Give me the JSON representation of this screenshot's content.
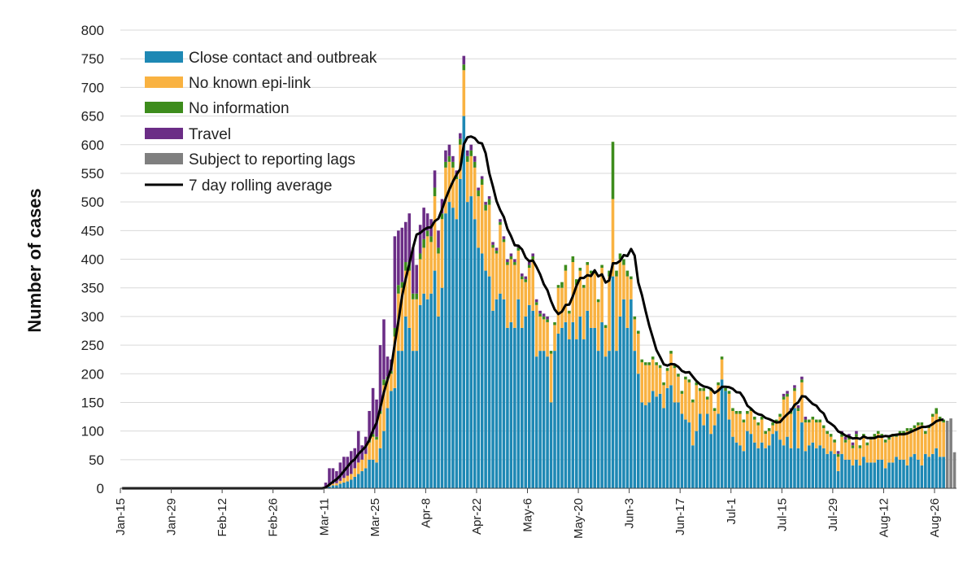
{
  "chart_data": {
    "type": "bar",
    "stacked": true,
    "title": "",
    "xlabel": "",
    "ylabel": "Number of cases",
    "ylim": [
      0,
      800
    ],
    "yticks": [
      0,
      50,
      100,
      150,
      200,
      250,
      300,
      350,
      400,
      450,
      500,
      550,
      600,
      650,
      700,
      750,
      800
    ],
    "grid": true,
    "legend_position": "top-left",
    "x_start": "Jan-15",
    "x_tick_labels": [
      "Jan-15",
      "Jan-29",
      "Feb-12",
      "Feb-26",
      "Mar-11",
      "Mar-25",
      "Apr-8",
      "Apr-22",
      "May-6",
      "May-20",
      "Jun-3",
      "Jun-17",
      "Jul-1",
      "Jul-15",
      "Jul-29",
      "Aug-12",
      "Aug-26"
    ],
    "x_tick_interval_days": 14,
    "first_bar_date": "Mar-11",
    "first_bar_day_index": 56,
    "series": [
      {
        "name": "Close contact and outbreak",
        "color": "#1e88b4",
        "values": [
          2,
          3,
          5,
          5,
          8,
          10,
          12,
          15,
          20,
          25,
          30,
          35,
          50,
          50,
          45,
          70,
          100,
          140,
          170,
          175,
          240,
          240,
          300,
          280,
          240,
          240,
          320,
          340,
          330,
          340,
          380,
          300,
          350,
          480,
          500,
          490,
          470,
          540,
          650,
          500,
          510,
          470,
          420,
          410,
          380,
          370,
          310,
          330,
          340,
          330,
          280,
          290,
          280,
          330,
          280,
          300,
          320,
          310,
          230,
          240,
          240,
          230,
          150,
          240,
          270,
          280,
          290,
          260,
          290,
          260,
          300,
          260,
          310,
          280,
          280,
          240,
          290,
          230,
          240,
          370,
          240,
          300,
          330,
          280,
          330,
          240,
          200,
          150,
          145,
          150,
          170,
          160,
          165,
          140,
          175,
          180,
          150,
          150,
          130,
          120,
          115,
          75,
          100,
          130,
          110,
          130,
          95,
          110,
          130,
          190,
          170,
          120,
          90,
          80,
          75,
          65,
          100,
          95,
          80,
          70,
          80,
          70,
          75,
          95,
          100,
          85,
          75,
          90,
          70,
          140,
          70,
          115,
          65,
          75,
          80,
          70,
          75,
          70,
          60,
          65,
          60,
          30,
          60,
          50,
          50,
          40,
          50,
          40,
          55,
          45,
          45,
          45,
          50,
          50,
          35,
          45,
          45,
          55,
          50,
          50,
          40,
          55,
          60,
          50,
          40,
          60,
          55,
          60,
          70,
          55,
          55
        ]
      },
      {
        "name": "No known epi-link",
        "color": "#f9b241",
        "values": [
          1,
          2,
          3,
          4,
          5,
          8,
          10,
          10,
          15,
          20,
          20,
          25,
          30,
          40,
          40,
          60,
          80,
          50,
          30,
          90,
          100,
          110,
          80,
          100,
          90,
          90,
          80,
          80,
          110,
          90,
          130,
          110,
          120,
          80,
          70,
          70,
          70,
          60,
          80,
          70,
          70,
          90,
          90,
          120,
          105,
          125,
          110,
          80,
          120,
          100,
          110,
          110,
          110,
          85,
          85,
          60,
          65,
          90,
          90,
          60,
          55,
          60,
          85,
          45,
          80,
          70,
          90,
          45,
          105,
          95,
          80,
          90,
          80,
          95,
          95,
          85,
          95,
          50,
          130,
          135,
          130,
          100,
          60,
          90,
          35,
          55,
          70,
          70,
          70,
          65,
          55,
          55,
          45,
          40,
          30,
          55,
          60,
          45,
          35,
          70,
          70,
          75,
          80,
          40,
          60,
          25,
          75,
          25,
          50,
          35,
          0,
          45,
          45,
          50,
          55,
          50,
          30,
          40,
          40,
          40,
          40,
          25,
          25,
          15,
          15,
          40,
          80,
          70,
          60,
          30,
          65,
          70,
          50,
          40,
          40,
          45,
          40,
          35,
          35,
          25,
          20,
          25,
          30,
          30,
          35,
          30,
          40,
          30,
          35,
          30,
          40,
          45,
          45,
          40,
          45,
          40,
          45,
          35,
          45,
          45,
          60,
          45,
          45,
          60,
          70,
          35,
          50,
          65,
          60,
          65,
          60
        ]
      },
      {
        "name": "No information",
        "color": "#3d8c1c",
        "values": [
          0,
          0,
          0,
          0,
          0,
          0,
          0,
          0,
          0,
          0,
          0,
          0,
          5,
          5,
          5,
          5,
          10,
          5,
          5,
          15,
          15,
          10,
          15,
          15,
          10,
          10,
          10,
          15,
          10,
          10,
          15,
          10,
          10,
          10,
          10,
          10,
          5,
          10,
          10,
          10,
          10,
          10,
          10,
          10,
          10,
          10,
          5,
          5,
          5,
          5,
          5,
          5,
          5,
          5,
          5,
          5,
          5,
          5,
          5,
          5,
          5,
          5,
          5,
          5,
          5,
          10,
          10,
          5,
          10,
          10,
          5,
          5,
          5,
          5,
          5,
          5,
          5,
          5,
          10,
          100,
          10,
          10,
          10,
          10,
          5,
          5,
          5,
          5,
          5,
          5,
          5,
          5,
          5,
          5,
          5,
          5,
          5,
          5,
          5,
          5,
          5,
          5,
          5,
          5,
          5,
          5,
          5,
          5,
          5,
          5,
          5,
          5,
          5,
          5,
          5,
          5,
          5,
          5,
          5,
          5,
          5,
          5,
          5,
          5,
          5,
          5,
          5,
          5,
          5,
          5,
          5,
          5,
          5,
          5,
          5,
          5,
          5,
          5,
          5,
          5,
          5,
          5,
          5,
          5,
          5,
          5,
          5,
          5,
          5,
          5,
          5,
          5,
          5,
          5,
          5,
          5,
          5,
          5,
          5,
          5,
          5,
          5,
          5,
          5,
          5,
          5,
          5,
          5,
          10,
          5,
          5
        ]
      },
      {
        "name": "Travel",
        "color": "#6b2d86",
        "values": [
          7,
          30,
          27,
          21,
          32,
          37,
          33,
          40,
          35,
          55,
          25,
          30,
          50,
          80,
          65,
          115,
          105,
          35,
          20,
          160,
          95,
          95,
          70,
          85,
          80,
          50,
          50,
          55,
          30,
          30,
          30,
          30,
          25,
          20,
          20,
          10,
          10,
          10,
          15,
          10,
          10,
          10,
          5,
          5,
          5,
          5,
          5,
          5,
          5,
          5,
          5,
          5,
          5,
          5,
          5,
          5,
          5,
          5,
          5,
          5,
          5,
          5,
          0,
          0,
          0,
          0,
          0,
          0,
          0,
          0,
          0,
          0,
          0,
          0,
          0,
          0,
          0,
          0,
          0,
          0,
          0,
          0,
          0,
          0,
          0,
          0,
          0,
          0,
          0,
          0,
          0,
          0,
          0,
          0,
          0,
          0,
          0,
          0,
          0,
          0,
          0,
          0,
          0,
          0,
          0,
          0,
          0,
          0,
          0,
          0,
          0,
          0,
          0,
          0,
          0,
          0,
          0,
          0,
          0,
          0,
          0,
          0,
          0,
          0,
          0,
          0,
          5,
          5,
          5,
          5,
          5,
          5,
          5,
          0,
          0,
          0,
          0,
          0,
          0,
          0,
          0,
          5,
          5,
          5,
          5,
          5,
          5,
          0,
          0,
          0,
          0,
          0,
          0,
          0,
          0,
          0,
          0,
          0,
          0,
          0,
          0,
          0,
          0,
          0,
          0,
          0,
          0,
          0,
          0,
          0,
          0
        ]
      },
      {
        "name": "Subject to reporting lags",
        "color": "#7f7f7f",
        "start_date": "Aug-29",
        "values": [
          118,
          122,
          63
        ]
      }
    ],
    "line": {
      "name": "7 day rolling average",
      "color": "#000000",
      "window_days": 7
    }
  }
}
